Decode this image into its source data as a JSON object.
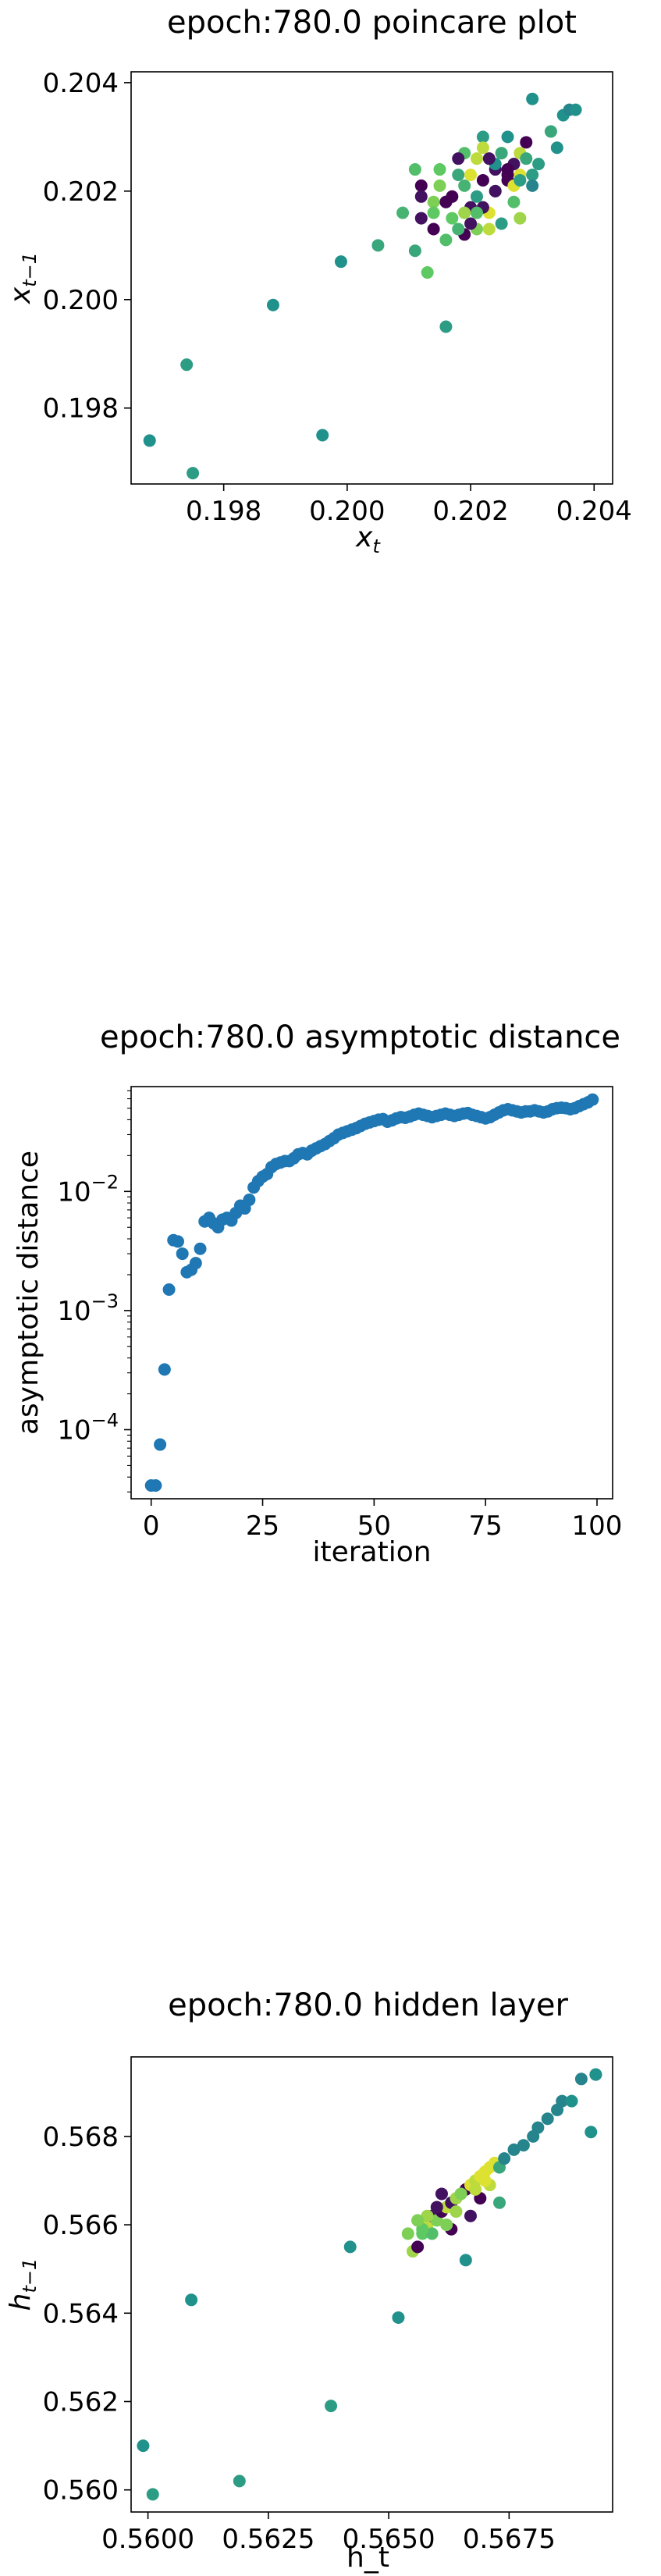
{
  "chart_data": [
    {
      "type": "scatter",
      "title": "epoch:780.0 poincare plot",
      "xlabel": "x",
      "xlabel_sub": "t",
      "ylabel": "x",
      "ylabel_sub": "t−1",
      "xlim": [
        0.1965,
        0.2043
      ],
      "ylim": [
        0.1966,
        0.2042
      ],
      "xticks": [
        0.198,
        0.2,
        0.202,
        0.204
      ],
      "yticks": [
        0.198,
        0.2,
        0.202,
        0.204
      ],
      "x": [
        0.1968,
        0.1974,
        0.1975,
        0.1988,
        0.1996,
        0.1999,
        0.2005,
        0.2009,
        0.2011,
        0.2011,
        0.2012,
        0.2013,
        0.2014,
        0.2015,
        0.2016,
        0.2016,
        0.2017,
        0.2018,
        0.2019,
        0.2019,
        0.202,
        0.2021,
        0.2021,
        0.2022,
        0.2022,
        0.2023,
        0.2024,
        0.2024,
        0.2025,
        0.2025,
        0.2026,
        0.2026,
        0.2027,
        0.2027,
        0.2028,
        0.2028,
        0.2029,
        0.203,
        0.203,
        0.2031,
        0.2033,
        0.2034,
        0.2035,
        0.2036,
        0.2037,
        0.2012,
        0.2014,
        0.2016,
        0.2018,
        0.202,
        0.2022,
        0.2024,
        0.2026,
        0.2028,
        0.203,
        0.2015,
        0.2017,
        0.2019,
        0.2021,
        0.2023,
        0.2025,
        0.2027,
        0.2029,
        0.202,
        0.2018,
        0.2016,
        0.2024,
        0.2026,
        0.2022,
        0.2014,
        0.2012,
        0.2028,
        0.2023,
        0.2021,
        0.2019
      ],
      "y": [
        0.1974,
        0.1988,
        0.1968,
        0.1999,
        0.1975,
        0.2007,
        0.201,
        0.2016,
        0.2024,
        0.2009,
        0.2015,
        0.2005,
        0.2013,
        0.2021,
        0.2018,
        0.1995,
        0.2015,
        0.2023,
        0.2012,
        0.2027,
        0.2017,
        0.2013,
        0.2026,
        0.2022,
        0.203,
        0.2016,
        0.2024,
        0.202,
        0.2027,
        0.2014,
        0.2022,
        0.203,
        0.2025,
        0.2018,
        0.2023,
        0.2015,
        0.2029,
        0.2023,
        0.2037,
        0.2025,
        0.2031,
        0.2028,
        0.2034,
        0.2035,
        0.2035,
        0.2021,
        0.2018,
        0.2011,
        0.2026,
        0.2023,
        0.2017,
        0.202,
        0.2024,
        0.2027,
        0.2021,
        0.2024,
        0.2019,
        0.2016,
        0.2019,
        0.2013,
        0.2027,
        0.2021,
        0.2026,
        0.2014,
        0.2013,
        0.2018,
        0.2025,
        0.2023,
        0.2028,
        0.2016,
        0.2019,
        0.2022,
        0.2026,
        0.2016,
        0.2021
      ],
      "color_value": [
        0.5,
        0.55,
        0.55,
        0.5,
        0.5,
        0.5,
        0.6,
        0.65,
        0.7,
        0.6,
        0.05,
        0.75,
        0.0,
        0.8,
        0.05,
        0.55,
        0.75,
        0.6,
        0.0,
        0.7,
        0.05,
        0.8,
        0.9,
        0.0,
        0.55,
        0.95,
        0.05,
        0.6,
        0.85,
        0.55,
        0.0,
        0.5,
        0.05,
        0.7,
        0.95,
        0.85,
        0.0,
        0.55,
        0.5,
        0.55,
        0.6,
        0.5,
        0.5,
        0.45,
        0.5,
        0.0,
        0.8,
        0.7,
        0.05,
        0.95,
        0.05,
        0.05,
        0.0,
        0.9,
        0.45,
        0.75,
        0.0,
        0.85,
        0.55,
        0.9,
        0.6,
        0.95,
        0.6,
        0.05,
        0.65,
        0.0,
        0.5,
        0.0,
        0.9,
        0.75,
        0.05,
        0.55,
        0.05,
        0.7,
        0.65
      ],
      "grid": false
    },
    {
      "type": "scatter",
      "title": "epoch:780.0 asymptotic distance",
      "xlabel": "iteration",
      "ylabel": "asymptotic distance",
      "xlim": [
        -4.5,
        103.5
      ],
      "ylim_log10": [
        -4.58,
        -1.12
      ],
      "yscale": "log",
      "xticks": [
        0,
        25,
        50,
        75,
        100
      ],
      "yticks_exp": [
        -4,
        -3,
        -2
      ],
      "marker_color": "#1f77b4",
      "x": [
        0,
        1,
        2,
        3,
        4,
        5,
        6,
        7,
        8,
        9,
        10,
        11,
        12,
        13,
        14,
        15,
        16,
        17,
        18,
        19,
        20,
        21,
        22,
        23,
        24,
        25,
        26,
        27,
        28,
        29,
        30,
        31,
        32,
        33,
        34,
        35,
        36,
        37,
        38,
        39,
        40,
        41,
        42,
        43,
        44,
        45,
        46,
        47,
        48,
        49,
        50,
        51,
        52,
        53,
        54,
        55,
        56,
        57,
        58,
        59,
        60,
        61,
        62,
        63,
        64,
        65,
        66,
        67,
        68,
        69,
        70,
        71,
        72,
        73,
        74,
        75,
        76,
        77,
        78,
        79,
        80,
        81,
        82,
        83,
        84,
        85,
        86,
        87,
        88,
        89,
        90,
        91,
        92,
        93,
        94,
        95,
        96,
        97,
        98,
        99
      ],
      "y": [
        3.4e-05,
        3.4e-05,
        7.5e-05,
        0.00032,
        0.0015,
        0.0039,
        0.0038,
        0.003,
        0.0021,
        0.0022,
        0.0025,
        0.0033,
        0.0056,
        0.006,
        0.0054,
        0.005,
        0.0058,
        0.006,
        0.0057,
        0.0066,
        0.0076,
        0.0072,
        0.0085,
        0.0108,
        0.0122,
        0.0133,
        0.014,
        0.016,
        0.017,
        0.0175,
        0.018,
        0.018,
        0.019,
        0.0205,
        0.021,
        0.0205,
        0.022,
        0.023,
        0.024,
        0.025,
        0.0265,
        0.028,
        0.03,
        0.031,
        0.032,
        0.033,
        0.034,
        0.0355,
        0.037,
        0.038,
        0.039,
        0.04,
        0.0405,
        0.0385,
        0.0395,
        0.041,
        0.042,
        0.0415,
        0.0425,
        0.044,
        0.045,
        0.044,
        0.043,
        0.042,
        0.043,
        0.044,
        0.045,
        0.044,
        0.043,
        0.044,
        0.045,
        0.0455,
        0.044,
        0.043,
        0.042,
        0.041,
        0.042,
        0.044,
        0.046,
        0.048,
        0.049,
        0.048,
        0.047,
        0.046,
        0.047,
        0.047,
        0.048,
        0.047,
        0.046,
        0.047,
        0.049,
        0.05,
        0.0505,
        0.05,
        0.049,
        0.05,
        0.052,
        0.054,
        0.056,
        0.059
      ],
      "grid": false
    },
    {
      "type": "scatter",
      "title": "epoch:780.0 hidden layer",
      "xlabel": "h_t",
      "ylabel": "h",
      "ylabel_sub": "t−1",
      "xlim": [
        0.55965,
        0.56965
      ],
      "ylim": [
        0.5595,
        0.5698
      ],
      "xticks": [
        "0.5600",
        "0.5625",
        "0.5650",
        "0.5675"
      ],
      "xticks_val": [
        0.56,
        0.5625,
        0.565,
        0.5675
      ],
      "yticks": [
        "0.560",
        "0.562",
        "0.564",
        "0.566",
        "0.568"
      ],
      "yticks_val": [
        0.56,
        0.562,
        0.564,
        0.566,
        0.568
      ],
      "x": [
        0.5599,
        0.5601,
        0.5609,
        0.5619,
        0.5638,
        0.5642,
        0.5652,
        0.5654,
        0.5655,
        0.5656,
        0.5657,
        0.5658,
        0.5659,
        0.566,
        0.5661,
        0.5662,
        0.5663,
        0.5664,
        0.5665,
        0.5666,
        0.5667,
        0.5668,
        0.5669,
        0.567,
        0.5671,
        0.5672,
        0.5673,
        0.5674,
        0.5676,
        0.5678,
        0.568,
        0.5681,
        0.5683,
        0.5685,
        0.5686,
        0.5688,
        0.569,
        0.5692,
        0.5693,
        0.5693,
        0.5666,
        0.5665,
        0.5661,
        0.5658,
        0.5663,
        0.5667,
        0.5669,
        0.5671,
        0.5659,
        0.5657,
        0.5656,
        0.5664,
        0.5668,
        0.5662,
        0.567,
        0.5673,
        0.566
      ],
      "y": [
        0.561,
        0.5599,
        0.5643,
        0.5602,
        0.5619,
        0.5655,
        0.5639,
        0.5658,
        0.5654,
        0.5655,
        0.5658,
        0.566,
        0.5662,
        0.5661,
        0.5663,
        0.5664,
        0.5665,
        0.5666,
        0.5667,
        0.5668,
        0.5669,
        0.567,
        0.5671,
        0.5672,
        0.5673,
        0.5674,
        0.5673,
        0.5675,
        0.5677,
        0.5678,
        0.568,
        0.5682,
        0.5684,
        0.5686,
        0.5688,
        0.5688,
        0.5693,
        0.5681,
        0.5694,
        0.5694,
        0.5652,
        0.5667,
        0.5667,
        0.5662,
        0.5659,
        0.5662,
        0.5666,
        0.5669,
        0.5658,
        0.5659,
        0.5661,
        0.5663,
        0.5668,
        0.566,
        0.567,
        0.5665,
        0.5664
      ],
      "color_value": [
        0.5,
        0.55,
        0.5,
        0.55,
        0.55,
        0.5,
        0.5,
        0.8,
        0.85,
        0.0,
        0.75,
        0.9,
        0.05,
        0.8,
        0.0,
        0.9,
        0.05,
        0.85,
        0.9,
        0.0,
        0.95,
        0.9,
        0.95,
        0.95,
        0.95,
        0.95,
        0.6,
        0.45,
        0.45,
        0.45,
        0.45,
        0.45,
        0.45,
        0.45,
        0.45,
        0.5,
        0.45,
        0.5,
        0.45,
        0.5,
        0.5,
        0.8,
        0.05,
        0.85,
        0.0,
        0.05,
        0.0,
        0.9,
        0.7,
        0.75,
        0.8,
        0.85,
        0.9,
        0.8,
        0.95,
        0.6,
        0.05
      ],
      "grid": false
    }
  ]
}
